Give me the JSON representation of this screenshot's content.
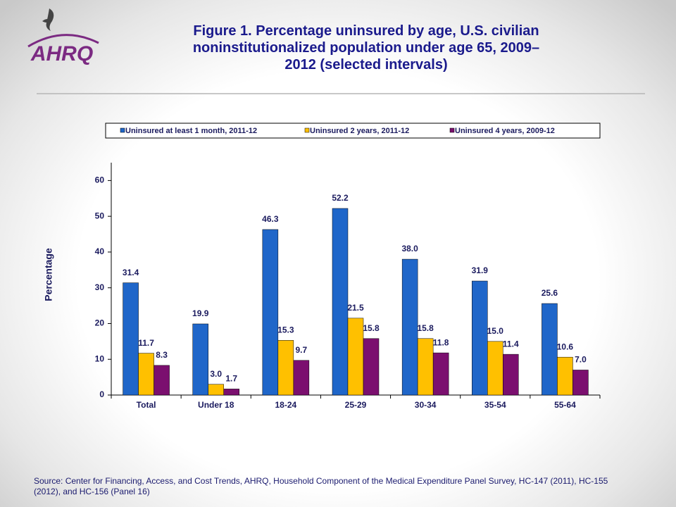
{
  "logo_text": "AHRQ",
  "chart_data": {
    "type": "bar",
    "title": "Figure 1. Percentage uninsured by age, U.S. civilian noninstitutionalized population under age 65, 2009–2012 (selected intervals)",
    "y_label": "Percentage",
    "source": "Source: Center for Financing, Access, and Cost Trends, AHRQ, Household Component of the Medical Expenditure Panel Survey, HC-147 (2011), HC-155 (2012), and HC-156 (Panel 16)",
    "categories": [
      "Total",
      "Under 18",
      "18-24",
      "25-29",
      "30-34",
      "35-54",
      "55-64"
    ],
    "series": [
      {
        "name": "Uninsured at least 1 month, 2011-12",
        "color": "#1f66c9",
        "values": [
          31.4,
          19.9,
          46.3,
          52.2,
          38.0,
          31.9,
          25.6
        ],
        "value_labels": [
          "31.4",
          "19.9",
          "46.3",
          "52.2",
          "38.0",
          "31.9",
          "25.6"
        ]
      },
      {
        "name": "Uninsured 2 years, 2011-12",
        "color": "#ffc000",
        "values": [
          11.7,
          3.0,
          15.3,
          21.5,
          15.8,
          15.0,
          10.6
        ],
        "value_labels": [
          "11.7",
          "3.0",
          "15.3",
          "21.5",
          "15.8",
          "15.0",
          "10.6"
        ]
      },
      {
        "name": "Uninsured 4 years, 2009-12",
        "color": "#7b0f6f",
        "values": [
          8.3,
          1.7,
          9.7,
          15.8,
          11.8,
          11.4,
          7.0
        ],
        "value_labels": [
          "8.3",
          "1.7",
          "9.7",
          "15.8",
          "11.8",
          "11.4",
          "7.0"
        ]
      }
    ],
    "ylim": [
      0,
      65
    ],
    "yticks": [
      0,
      10,
      20,
      30,
      40,
      50,
      60
    ],
    "grid": false,
    "legend": "top"
  }
}
